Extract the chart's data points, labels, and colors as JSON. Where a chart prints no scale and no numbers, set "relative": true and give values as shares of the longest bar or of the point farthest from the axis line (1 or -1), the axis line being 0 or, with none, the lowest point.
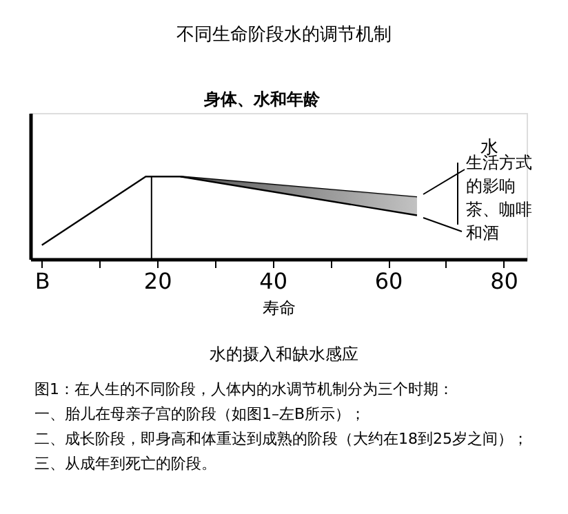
{
  "chart_data": {
    "type": "line",
    "title": "不同生命阶段水的调节机制",
    "subtitle": "身体、水和年龄",
    "xlabel": "寿命",
    "relative": true,
    "tick_labels": "x",
    "grid": false,
    "marker": "none",
    "line_style": "solid",
    "xlim": [
      -2,
      84
    ],
    "xticks": [
      {
        "value": 0,
        "label": "B"
      },
      {
        "value": 10,
        "label": null
      },
      20,
      {
        "value": 30,
        "label": null
      },
      40,
      {
        "value": 50,
        "label": null
      },
      60,
      {
        "value": 70,
        "label": null
      },
      80
    ],
    "series": [
      {
        "color": "#000000",
        "x": [
          0,
          18,
          24,
          65
        ],
        "values": [
          0.17,
          1,
          1,
          0.75
        ],
        "lower": [
          null,
          null,
          1,
          0.53
        ],
        "upper": [
          null,
          null,
          1,
          0.75
        ]
      },
      {
        "color": "#000000",
        "x": [
          24,
          65
        ],
        "values": [
          1,
          0.53
        ]
      }
    ],
    "ref_lines": [
      {
        "axis": "x",
        "value": 19,
        "color": "#000000"
      }
    ],
    "annotations": [
      "水",
      "生活方式的影响",
      "茶、咖啡和酒",
      "水的摄入和缺水感应",
      "图1：在人生的不同阶段，人体内的水调节机制分为三个时期：",
      "一、胎儿在母亲子宫的阶段（如图1–左B所示）；",
      "二、成长阶段，即身高和体重达到成熟的阶段（大约在18到25岁之间）；",
      "三、从成年到死亡的阶段。"
    ]
  }
}
